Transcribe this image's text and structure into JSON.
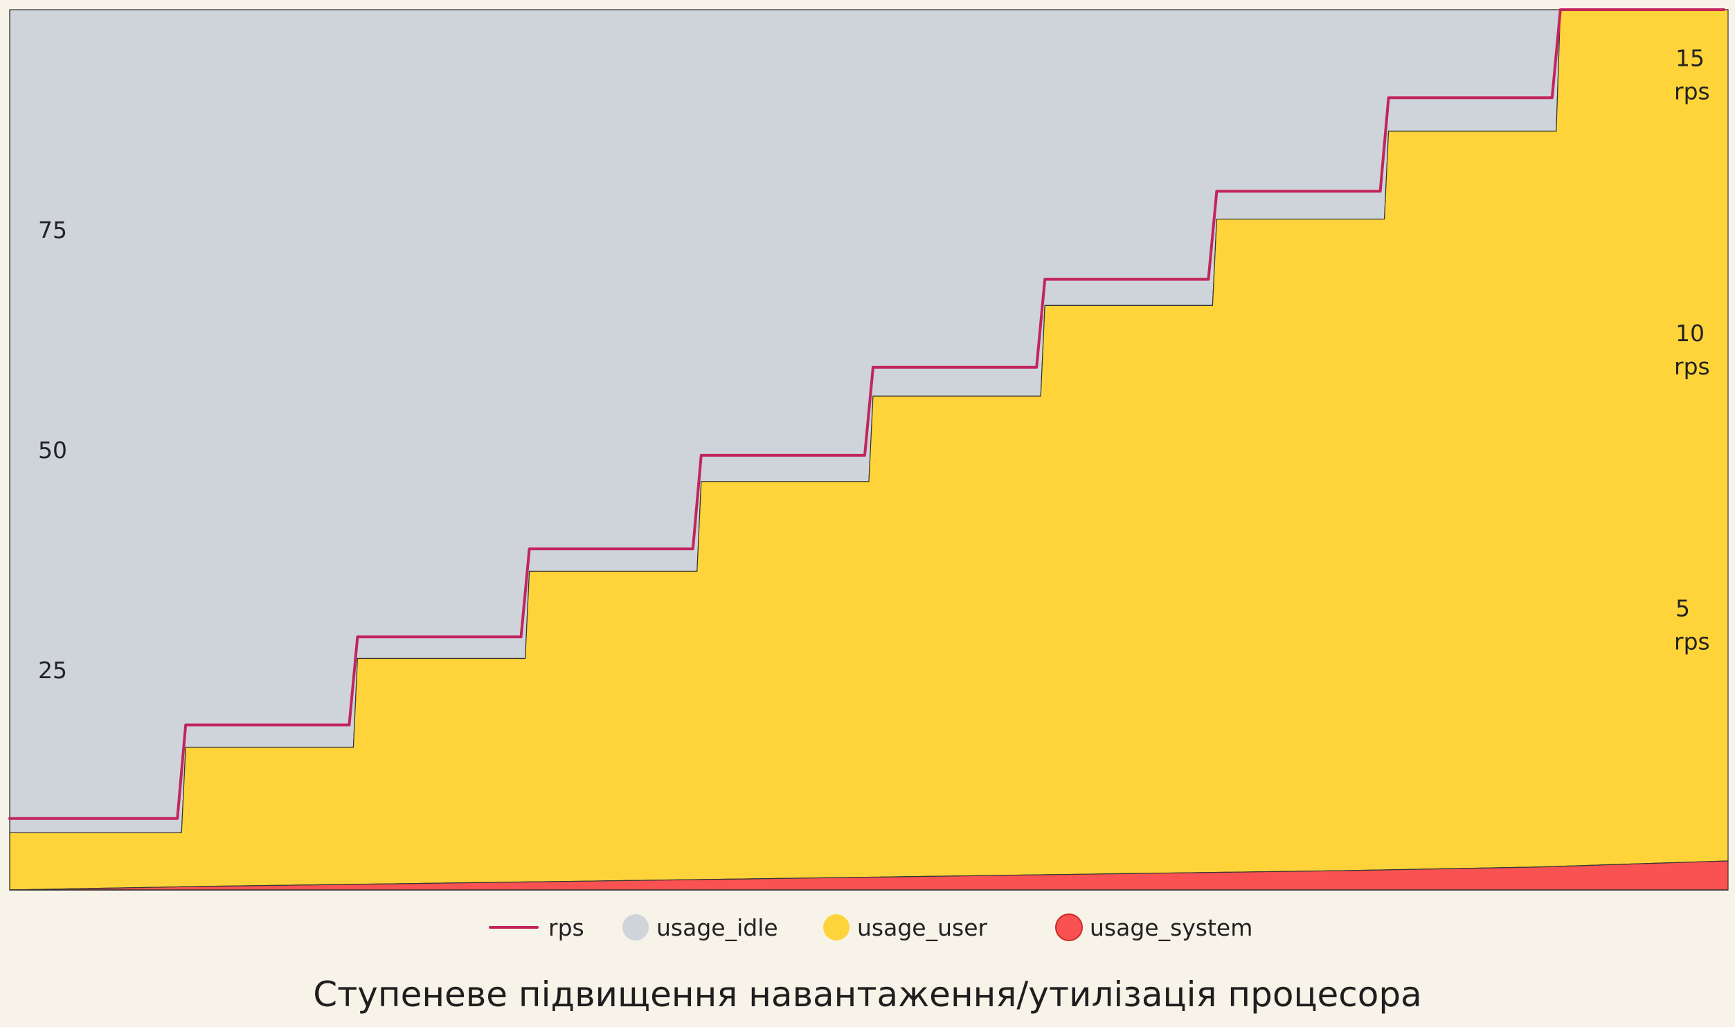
{
  "chart_data": {
    "type": "area",
    "title": "Ступеневе підвищення навантаження/утилізація процесора",
    "x": [
      0,
      1,
      2,
      3,
      4,
      5,
      6,
      7,
      8,
      9
    ],
    "ylim_left": [
      0,
      100
    ],
    "ylim_right": [
      0,
      16
    ],
    "left_ticks": [
      {
        "value": 25,
        "label": "25"
      },
      {
        "value": 50,
        "label": "50"
      },
      {
        "value": 75,
        "label": "75"
      }
    ],
    "right_ticks": [
      {
        "value": 5,
        "label": "5",
        "unit": "rps"
      },
      {
        "value": 10,
        "label": "10",
        "unit": "rps"
      },
      {
        "value": 15,
        "label": "15",
        "unit": "rps"
      }
    ],
    "series": [
      {
        "name": "usage_system",
        "kind": "area",
        "color": "#fa5252",
        "values": [
          0,
          0.4,
          0.7,
          1.0,
          1.3,
          1.6,
          1.9,
          2.2,
          2.6,
          3.3
        ]
      },
      {
        "name": "usage_user",
        "kind": "area",
        "color": "#ffd43b",
        "values": [
          6.5,
          16.2,
          26.3,
          36.2,
          46.4,
          56.1,
          66.4,
          76.2,
          86.2,
          100
        ]
      },
      {
        "name": "usage_idle",
        "kind": "area",
        "color": "#ced4da",
        "values": [
          93.5,
          83.8,
          73.7,
          63.8,
          53.6,
          43.9,
          33.6,
          23.8,
          13.8,
          0
        ]
      },
      {
        "name": "rps",
        "kind": "line",
        "axis": "right",
        "color": "#c2255c",
        "values": [
          1.3,
          3.0,
          4.6,
          6.2,
          7.9,
          9.5,
          11.1,
          12.7,
          14.4,
          16.0
        ]
      }
    ],
    "legend": {
      "placement": "bottom",
      "items": [
        {
          "label": "rps",
          "color": "#c2255c",
          "symbol": "line"
        },
        {
          "label": "usage_idle",
          "color": "#ced4da",
          "symbol": "dot"
        },
        {
          "label": "usage_user",
          "color": "#ffd43b",
          "symbol": "dot"
        },
        {
          "label": "usage_system",
          "color": "#fa5252",
          "symbol": "dot"
        }
      ]
    },
    "grid": false
  }
}
